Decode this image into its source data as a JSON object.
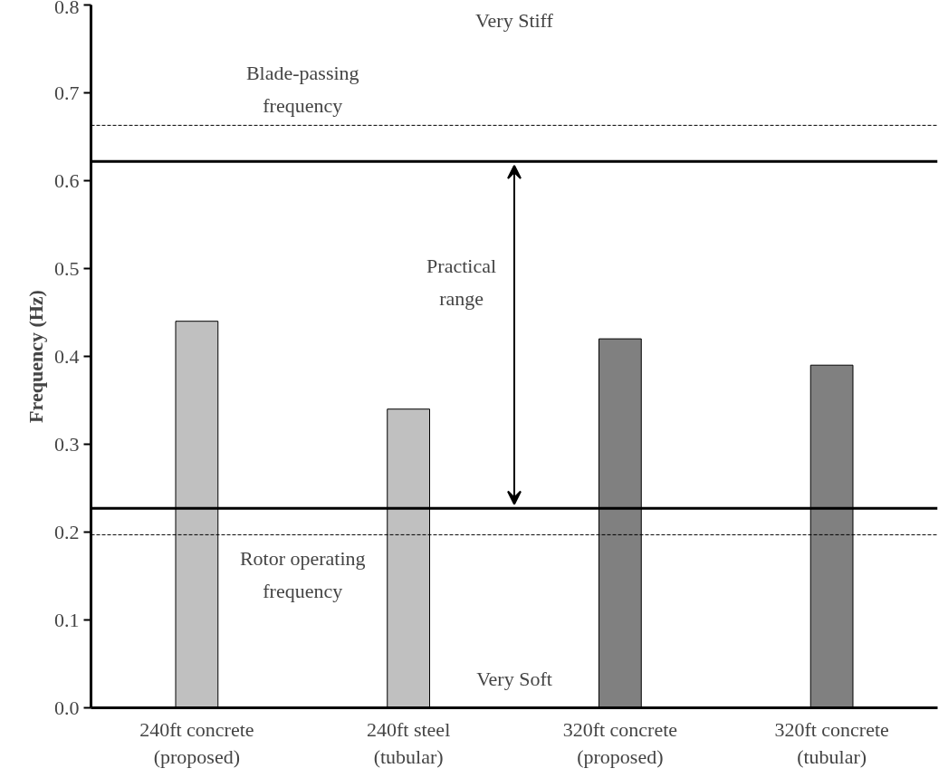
{
  "chart_data": {
    "type": "bar",
    "ylabel": "Frequency (Hz)",
    "categories": [
      "240ft concrete (proposed)",
      "240ft steel (tubular)",
      "320ft concrete (proposed)",
      "320ft concrete (tubular)"
    ],
    "values": [
      0.44,
      0.34,
      0.42,
      0.39
    ],
    "colors": [
      "#c0c0c0",
      "#c0c0c0",
      "#808080",
      "#808080"
    ],
    "ylim": [
      0,
      0.8
    ],
    "yticks": [
      {
        "value": 0,
        "label": "0.0"
      },
      0.1,
      0.2,
      0.3,
      0.4,
      0.5,
      0.6,
      0.7,
      0.8
    ],
    "grid": false,
    "ref_lines": [
      {
        "axis": "y",
        "value": 0.663,
        "label": "Blade-passing frequency",
        "line_style": "dashed",
        "color": "#000000"
      },
      {
        "axis": "y",
        "value": 0.622,
        "line_style": "solid",
        "color": "#000000"
      },
      {
        "axis": "y",
        "value": 0.227,
        "line_style": "solid",
        "color": "#000000"
      },
      {
        "axis": "y",
        "value": 0.197,
        "label": "Rotor operating frequency",
        "line_style": "dashed",
        "color": "#000000"
      }
    ],
    "annotations": [
      "Very Stiff",
      "Practical range",
      "Very Soft"
    ]
  }
}
